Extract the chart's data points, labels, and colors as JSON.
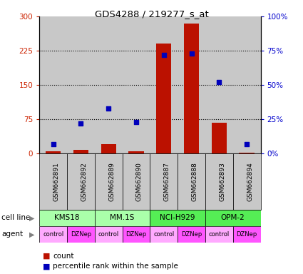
{
  "title": "GDS4288 / 219277_s_at",
  "samples": [
    "GSM662891",
    "GSM662892",
    "GSM662889",
    "GSM662890",
    "GSM662887",
    "GSM662888",
    "GSM662893",
    "GSM662894"
  ],
  "count_values": [
    5,
    8,
    20,
    5,
    240,
    285,
    68,
    2
  ],
  "percentile_values": [
    7,
    22,
    33,
    23,
    72,
    73,
    52,
    7
  ],
  "left_ylim": [
    0,
    300
  ],
  "right_ylim": [
    0,
    100
  ],
  "left_yticks": [
    0,
    75,
    150,
    225,
    300
  ],
  "right_yticks": [
    0,
    25,
    50,
    75,
    100
  ],
  "right_yticklabels": [
    "0%",
    "25%",
    "50%",
    "75%",
    "100%"
  ],
  "cell_line_data": [
    {
      "label": "KMS18",
      "start": 0,
      "end": 2,
      "color": "#aaffaa"
    },
    {
      "label": "MM.1S",
      "start": 2,
      "end": 4,
      "color": "#aaffaa"
    },
    {
      "label": "NCI-H929",
      "start": 4,
      "end": 6,
      "color": "#55ee55"
    },
    {
      "label": "OPM-2",
      "start": 6,
      "end": 8,
      "color": "#55ee55"
    }
  ],
  "agents": [
    "control",
    "DZNep",
    "control",
    "DZNep",
    "control",
    "DZNep",
    "control",
    "DZNep"
  ],
  "agent_colors": [
    "#ffaaff",
    "#ff55ff",
    "#ffaaff",
    "#ff55ff",
    "#ffaaff",
    "#ff55ff",
    "#ffaaff",
    "#ff55ff"
  ],
  "bar_color": "#bb1100",
  "dot_color": "#0000bb",
  "bar_width": 0.55,
  "sample_bg_color": "#c8c8c8"
}
